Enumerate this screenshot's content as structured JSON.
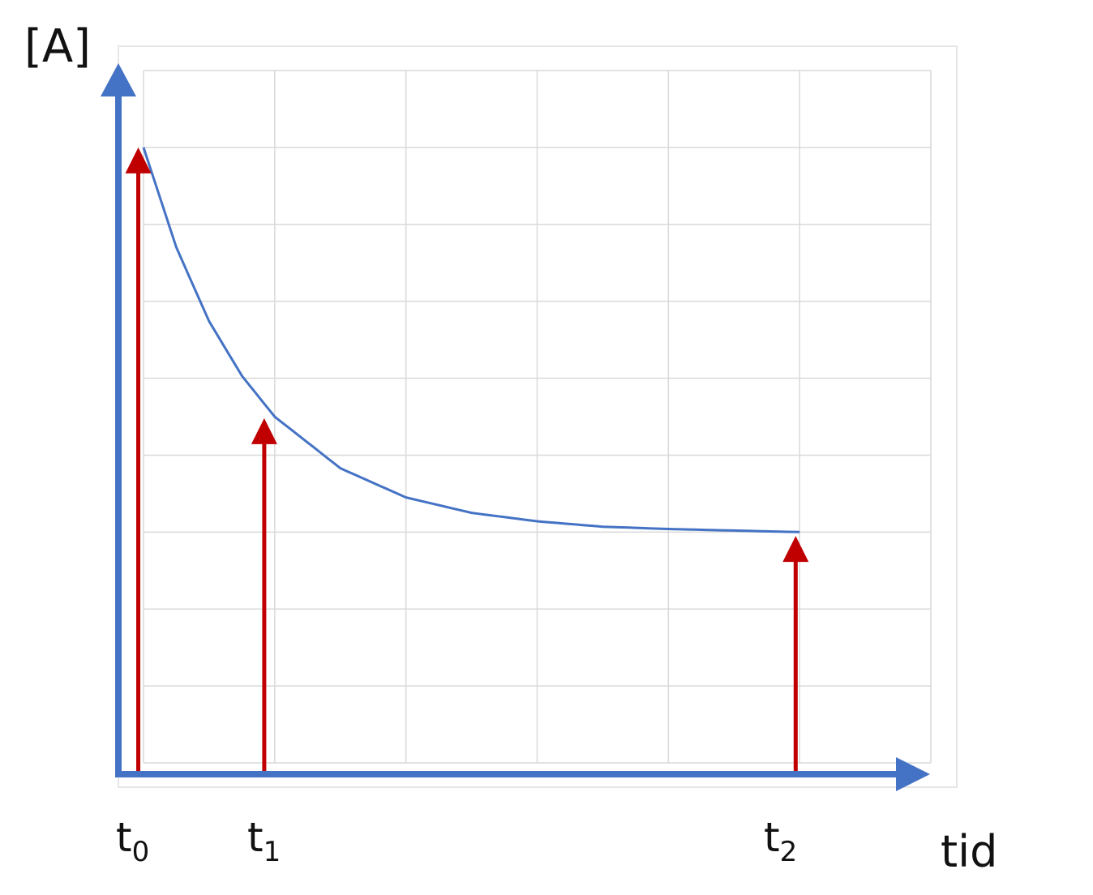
{
  "chart_data": {
    "type": "line",
    "ylabel": "[A]",
    "xlabel": "tid",
    "xlim": [
      0,
      6
    ],
    "ylim": [
      0,
      9
    ],
    "grid": true,
    "series": [
      {
        "x": [
          0,
          0.25,
          0.5,
          0.75,
          1,
          1.5,
          2,
          2.5,
          3,
          3.5,
          4,
          4.5,
          5
        ],
        "y": [
          8,
          6.7,
          5.74,
          5.03,
          4.5,
          3.83,
          3.45,
          3.25,
          3.14,
          3.07,
          3.04,
          3.02,
          3.0
        ]
      }
    ],
    "markers": [
      {
        "label": "t",
        "sub": "0",
        "x": -0.04,
        "value": 8.0
      },
      {
        "label": "t",
        "sub": "1",
        "x": 0.92,
        "value": 4.48
      },
      {
        "label": "t",
        "sub": "2",
        "x": 4.97,
        "value": 2.95
      }
    ],
    "colors": {
      "curve": "#4472C4",
      "axes": "#4472C4",
      "markers": "#C00000",
      "grid": "#D9D9D9"
    }
  }
}
